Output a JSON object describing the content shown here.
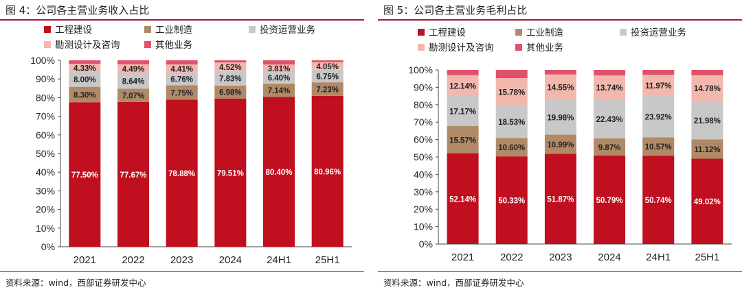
{
  "chart_data": [
    {
      "id": "revenue",
      "figure_title": "图 4：公司各主营业务收入占比",
      "type": "bar",
      "stacked": true,
      "categories": [
        "2021",
        "2022",
        "2023",
        "2024",
        "24H1",
        "25H1"
      ],
      "ylim": [
        0,
        100
      ],
      "yticks": [
        "0%",
        "10%",
        "20%",
        "30%",
        "40%",
        "50%",
        "60%",
        "70%",
        "80%",
        "90%",
        "100%"
      ],
      "legend_position": "top",
      "series": [
        {
          "name": "工程建设",
          "color": "#c00f1e",
          "values": [
            77.5,
            77.67,
            78.88,
            79.51,
            80.4,
            80.96
          ],
          "labels": [
            "77.50%",
            "77.67%",
            "78.88%",
            "79.51%",
            "80.40%",
            "80.96%"
          ],
          "label_color": "#ffffff"
        },
        {
          "name": "工业制造",
          "color": "#b08a66",
          "values": [
            8.3,
            7.07,
            7.75,
            6.98,
            7.14,
            7.23
          ],
          "labels": [
            "8.30%",
            "7.07%",
            "7.75%",
            "6.98%",
            "7.14%",
            "7.23%"
          ],
          "label_color": "#222222"
        },
        {
          "name": "投资运营业务",
          "color": "#c8c8c8",
          "values": [
            8.0,
            8.64,
            6.76,
            7.83,
            6.4,
            6.75
          ],
          "labels": [
            "8.00%",
            "8.64%",
            "6.76%",
            "7.83%",
            "6.40%",
            "6.75%"
          ],
          "label_color": "#222222"
        },
        {
          "name": "勘测设计及咨询",
          "color": "#f2b8ae",
          "values": [
            4.33,
            4.49,
            4.41,
            4.52,
            3.81,
            4.05
          ],
          "labels": [
            "4.33%",
            "4.49%",
            "4.41%",
            "4.52%",
            "3.81%",
            "4.05%"
          ],
          "label_color": "#222222"
        },
        {
          "name": "其他业务",
          "color": "#e0526a",
          "values": [
            1.87,
            2.13,
            2.2,
            1.16,
            2.25,
            1.01
          ],
          "labels": null,
          "label_color": "#222222"
        }
      ],
      "source": "资料来源：wind，西部证券研发中心"
    },
    {
      "id": "gross_profit",
      "figure_title": "图 5：公司各主营业务毛利占比",
      "type": "bar",
      "stacked": true,
      "categories": [
        "2021",
        "2022",
        "2023",
        "2024",
        "24H1",
        "25H1"
      ],
      "ylim": [
        0,
        100
      ],
      "yticks": [
        "0%",
        "10%",
        "20%",
        "30%",
        "40%",
        "50%",
        "60%",
        "70%",
        "80%",
        "90%",
        "100%"
      ],
      "legend_position": "top",
      "series": [
        {
          "name": "工程建设",
          "color": "#c00f1e",
          "values": [
            52.14,
            50.33,
            51.87,
            50.79,
            50.74,
            49.02
          ],
          "labels": [
            "52.14%",
            "50.33%",
            "51.87%",
            "50.79%",
            "50.74%",
            "49.02%"
          ],
          "label_color": "#ffffff"
        },
        {
          "name": "工业制造",
          "color": "#b08a66",
          "values": [
            15.57,
            10.6,
            10.99,
            9.87,
            10.57,
            11.12
          ],
          "labels": [
            "15.57%",
            "10.60%",
            "10.99%",
            "9.87%",
            "10.57%",
            "11.12%"
          ],
          "label_color": "#222222"
        },
        {
          "name": "投资运营业务",
          "color": "#c8c8c8",
          "values": [
            17.17,
            18.53,
            19.98,
            22.43,
            23.92,
            21.98
          ],
          "labels": [
            "17.17%",
            "18.53%",
            "19.98%",
            "22.43%",
            "23.92%",
            "21.98%"
          ],
          "label_color": "#222222"
        },
        {
          "name": "勘测设计及咨询",
          "color": "#f2b8ae",
          "values": [
            12.14,
            15.78,
            14.55,
            13.74,
            11.97,
            14.78
          ],
          "labels": [
            "12.14%",
            "15.78%",
            "14.55%",
            "13.74%",
            "11.97%",
            "14.78%"
          ],
          "label_color": "#222222"
        },
        {
          "name": "其他业务",
          "color": "#e0526a",
          "values": [
            2.98,
            4.76,
            2.61,
            3.17,
            2.8,
            3.1
          ],
          "labels": null,
          "label_color": "#222222"
        }
      ],
      "source": "资料来源：wind，西部证券研发中心"
    }
  ]
}
